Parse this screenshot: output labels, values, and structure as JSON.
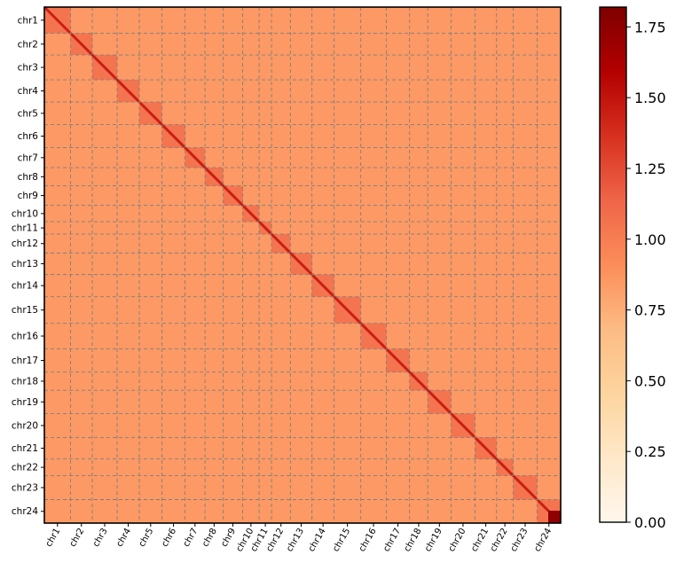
{
  "chart_data": {
    "type": "heatmap",
    "title": "",
    "xlabel": "",
    "ylabel": "",
    "labels": [
      "chr1",
      "chr2",
      "chr3",
      "chr4",
      "chr5",
      "chr6",
      "chr7",
      "chr8",
      "chr9",
      "chr10",
      "chr11",
      "chr12",
      "chr13",
      "chr14",
      "chr15",
      "chr16",
      "chr17",
      "chr18",
      "chr19",
      "chr20",
      "chr21",
      "chr22",
      "chr23",
      "chr24"
    ],
    "relative_sizes": [
      1.18,
      0.98,
      1.12,
      1.0,
      1.02,
      1.04,
      0.9,
      0.82,
      0.88,
      0.74,
      0.56,
      0.85,
      0.97,
      1.0,
      1.2,
      1.15,
      1.05,
      0.82,
      1.05,
      1.08,
      0.97,
      0.75,
      1.08,
      1.06
    ],
    "background_value": 0.85,
    "intra_chromosome_value": 1.05,
    "peak_value": 1.75,
    "colorbar": {
      "min": 0.0,
      "max": 1.82,
      "ticks": [
        "0.00",
        "0.25",
        "0.50",
        "0.75",
        "1.00",
        "1.25",
        "1.50",
        "1.75"
      ],
      "colormap": "OrRd",
      "colors": [
        "#fff7ec",
        "#fee8c8",
        "#fdd49e",
        "#fdbb84",
        "#fc8d59",
        "#ef6548",
        "#d7301f",
        "#b30000",
        "#7f0000"
      ]
    }
  }
}
